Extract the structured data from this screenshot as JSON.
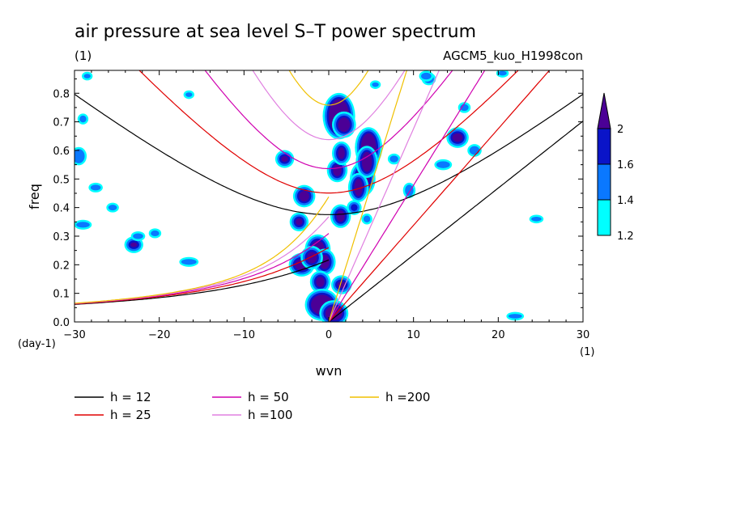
{
  "chart_data": {
    "type": "heatmap",
    "title": "air pressure at sea level S–T power spectrum",
    "subtitle_left": "(1)",
    "subtitle_right": "AGCM5_kuo_H1998con",
    "xlabel": "wvn",
    "ylabel": "freq",
    "x_unit_label": "(1)",
    "y_unit_label": "(day-1)",
    "xlim": [
      -30,
      30
    ],
    "ylim": [
      0,
      0.88
    ],
    "x_ticks": [
      {
        "value": -30,
        "label": "−30"
      },
      {
        "value": -20,
        "label": "−20"
      },
      {
        "value": -10,
        "label": "−10"
      },
      {
        "value": 0,
        "label": "0"
      },
      {
        "value": 10,
        "label": "10"
      },
      {
        "value": 20,
        "label": "20"
      },
      {
        "value": 30,
        "label": "30"
      }
    ],
    "y_ticks": [
      {
        "value": 0,
        "label": "0.0"
      },
      {
        "value": 0.1,
        "label": "0.1"
      },
      {
        "value": 0.2,
        "label": "0.2"
      },
      {
        "value": 0.3,
        "label": "0.3"
      },
      {
        "value": 0.4,
        "label": "0.4"
      },
      {
        "value": 0.5,
        "label": "0.5"
      },
      {
        "value": 0.6,
        "label": "0.6"
      },
      {
        "value": 0.7,
        "label": "0.7"
      },
      {
        "value": 0.8,
        "label": "0.8"
      }
    ],
    "colorbar": {
      "levels": [
        {
          "label": "1.2",
          "color": "#00ffff"
        },
        {
          "label": "1.4",
          "color": "#0a78ff"
        },
        {
          "label": "1.6",
          "color": "#0a14c8"
        },
        {
          "label": "2",
          "color": "#4b0096"
        }
      ],
      "extend": "max"
    },
    "contour_patches": [
      {
        "wvn": 1.2,
        "freq": 0.72,
        "rx": 1.2,
        "ry": 0.06,
        "level": 3
      },
      {
        "wvn": 1.8,
        "freq": 0.69,
        "rx": 0.7,
        "ry": 0.025,
        "level": 3
      },
      {
        "wvn": 4.7,
        "freq": 0.61,
        "rx": 0.9,
        "ry": 0.05,
        "level": 3
      },
      {
        "wvn": 4.0,
        "freq": 0.5,
        "rx": 0.8,
        "ry": 0.04,
        "level": 3
      },
      {
        "wvn": 4.5,
        "freq": 0.56,
        "rx": 0.6,
        "ry": 0.035,
        "level": 3
      },
      {
        "wvn": 3.5,
        "freq": 0.47,
        "rx": 0.5,
        "ry": 0.03,
        "level": 3
      },
      {
        "wvn": 1.0,
        "freq": 0.53,
        "rx": 0.5,
        "ry": 0.02,
        "level": 3
      },
      {
        "wvn": 1.5,
        "freq": 0.59,
        "rx": 0.4,
        "ry": 0.02,
        "level": 3
      },
      {
        "wvn": -2.9,
        "freq": 0.44,
        "rx": 0.6,
        "ry": 0.018,
        "level": 3
      },
      {
        "wvn": 1.4,
        "freq": 0.37,
        "rx": 0.5,
        "ry": 0.02,
        "level": 3
      },
      {
        "wvn": -1.3,
        "freq": 0.255,
        "rx": 0.8,
        "ry": 0.03,
        "level": 3
      },
      {
        "wvn": -0.5,
        "freq": 0.21,
        "rx": 0.6,
        "ry": 0.025,
        "level": 3
      },
      {
        "wvn": -3.2,
        "freq": 0.2,
        "rx": 0.8,
        "ry": 0.02,
        "level": 3
      },
      {
        "wvn": -2.0,
        "freq": 0.225,
        "rx": 0.6,
        "ry": 0.02,
        "level": 3
      },
      {
        "wvn": -1.0,
        "freq": 0.14,
        "rx": 0.5,
        "ry": 0.018,
        "level": 3
      },
      {
        "wvn": -0.8,
        "freq": 0.06,
        "rx": 1.3,
        "ry": 0.035,
        "level": 3
      },
      {
        "wvn": 0.6,
        "freq": 0.03,
        "rx": 1.0,
        "ry": 0.025,
        "level": 3
      },
      {
        "wvn": 1.5,
        "freq": 0.13,
        "rx": 0.5,
        "ry": 0.012,
        "level": 3
      },
      {
        "wvn": 15.2,
        "freq": 0.645,
        "rx": 0.6,
        "ry": 0.015,
        "level": 3
      },
      {
        "wvn": -5.2,
        "freq": 0.57,
        "rx": 0.4,
        "ry": 0.01,
        "level": 3
      },
      {
        "wvn": -3.5,
        "freq": 0.35,
        "rx": 0.4,
        "ry": 0.012,
        "level": 3
      },
      {
        "wvn": -23.0,
        "freq": 0.27,
        "rx": 0.4,
        "ry": 0.008,
        "level": 3
      },
      {
        "wvn": 3.0,
        "freq": 0.4,
        "rx": 0.4,
        "ry": 0.012,
        "level": 2
      },
      {
        "wvn": 4.5,
        "freq": 0.36,
        "rx": 0.4,
        "ry": 0.012,
        "level": 1
      },
      {
        "wvn": 9.5,
        "freq": 0.46,
        "rx": 0.5,
        "ry": 0.02,
        "level": 1
      },
      {
        "wvn": 7.7,
        "freq": 0.57,
        "rx": 0.5,
        "ry": 0.012,
        "level": 1
      },
      {
        "wvn": 11.8,
        "freq": 0.85,
        "rx": 0.6,
        "ry": 0.015,
        "level": 1
      },
      {
        "wvn": 16.0,
        "freq": 0.75,
        "rx": 0.5,
        "ry": 0.012,
        "level": 1
      },
      {
        "wvn": 13.5,
        "freq": 0.55,
        "rx": 0.8,
        "ry": 0.012,
        "level": 1
      },
      {
        "wvn": 17.2,
        "freq": 0.6,
        "rx": 0.6,
        "ry": 0.015,
        "level": 1
      },
      {
        "wvn": -29.0,
        "freq": 0.34,
        "rx": 0.8,
        "ry": 0.01,
        "level": 1
      },
      {
        "wvn": -25.5,
        "freq": 0.4,
        "rx": 0.5,
        "ry": 0.01,
        "level": 1
      },
      {
        "wvn": -27.5,
        "freq": 0.47,
        "rx": 0.6,
        "ry": 0.01,
        "level": 1
      },
      {
        "wvn": -29.5,
        "freq": 0.58,
        "rx": 0.7,
        "ry": 0.025,
        "level": 1
      },
      {
        "wvn": -29.0,
        "freq": 0.71,
        "rx": 0.4,
        "ry": 0.012,
        "level": 1
      },
      {
        "wvn": -16.5,
        "freq": 0.21,
        "rx": 0.9,
        "ry": 0.01,
        "level": 1
      },
      {
        "wvn": -22.5,
        "freq": 0.3,
        "rx": 0.6,
        "ry": 0.01,
        "level": 1
      },
      {
        "wvn": -20.5,
        "freq": 0.31,
        "rx": 0.5,
        "ry": 0.01,
        "level": 1
      },
      {
        "wvn": -16.5,
        "freq": 0.795,
        "rx": 0.4,
        "ry": 0.008,
        "level": 1
      },
      {
        "wvn": -28.5,
        "freq": 0.86,
        "rx": 0.4,
        "ry": 0.008,
        "level": 1
      },
      {
        "wvn": 22.0,
        "freq": 0.02,
        "rx": 0.8,
        "ry": 0.008,
        "level": 1
      },
      {
        "wvn": 24.5,
        "freq": 0.36,
        "rx": 0.6,
        "ry": 0.008,
        "level": 1
      },
      {
        "wvn": 11.5,
        "freq": 0.86,
        "rx": 0.6,
        "ry": 0.012,
        "level": 1
      },
      {
        "wvn": 5.5,
        "freq": 0.83,
        "rx": 0.4,
        "ry": 0.008,
        "level": 1
      },
      {
        "wvn": 20.5,
        "freq": 0.87,
        "rx": 0.5,
        "ry": 0.008,
        "level": 1
      }
    ],
    "dispersion_curves": [
      {
        "label": "h = 12",
        "h": 12,
        "color": "#000000"
      },
      {
        "label": "h = 25",
        "h": 25,
        "color": "#e00000"
      },
      {
        "label": "h = 50",
        "h": 50,
        "color": "#d000b0"
      },
      {
        "label": "h =100",
        "h": 100,
        "color": "#e080e0"
      },
      {
        "label": "h =200",
        "h": 200,
        "color": "#f0c000"
      }
    ]
  }
}
